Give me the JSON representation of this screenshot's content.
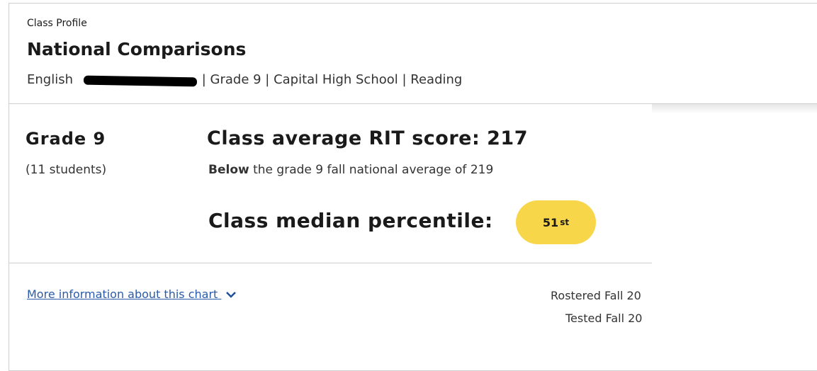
{
  "header": {
    "eyebrow": "Class Profile",
    "title": "National Comparisons",
    "subtitle_start": "English",
    "subtitle_end": " | Grade 9 | Capital High School | Reading"
  },
  "summary": {
    "grade": "Grade 9",
    "students": "(11 students)",
    "rit_heading": "Class average RIT score: 217",
    "comparison_bold": "Below",
    "comparison_rest": " the grade 9 fall national average of 219",
    "percentile_label": "Class median percentile:",
    "percentile_value": "51",
    "percentile_suffix": "st"
  },
  "footer": {
    "link": "More information about this chart",
    "rostered": "Rostered Fall 20",
    "tested": "Tested Fall 20"
  }
}
